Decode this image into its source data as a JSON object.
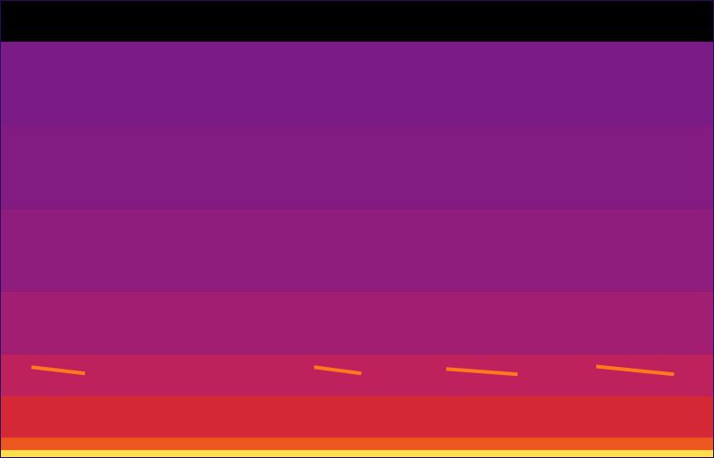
{
  "chart_data": {
    "type": "spectrogram",
    "tick_labels": false,
    "grid": false,
    "xlim": [
      0,
      100
    ],
    "ylim": [
      0,
      110
    ],
    "y_bins": [
      0,
      2,
      5,
      15,
      25,
      40,
      60,
      80,
      100
    ],
    "levels": [
      1.0,
      0.8,
      0.68,
      0.62,
      0.55,
      0.5,
      0.47,
      0.45
    ],
    "level_range": [
      0,
      1
    ],
    "color": "#ff7a1a",
    "calls": [
      {
        "x": [
          4.4,
          11.9
        ],
        "y": [
          21.8,
          20.3
        ]
      },
      {
        "x": [
          44.0,
          50.6
        ],
        "y": [
          21.8,
          20.3
        ]
      },
      {
        "x": [
          62.5,
          72.5
        ],
        "y": [
          21.4,
          20.1
        ]
      },
      {
        "x": [
          83.5,
          94.4
        ],
        "y": [
          22.0,
          20.1
        ]
      }
    ]
  }
}
